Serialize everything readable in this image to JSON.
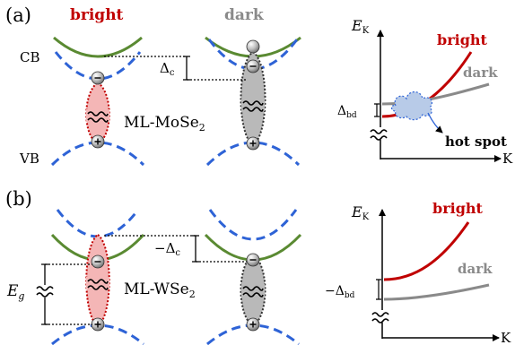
{
  "colors": {
    "cb_green": "#5a8a32",
    "vb_blue": "#2e63d6",
    "bright_red": "#c00000",
    "dark_gray": "#8a8a8a",
    "exciton_bright_fill": "#f4b6b6",
    "exciton_dark_fill": "#b9b9b9",
    "cloud_fill": "#b8cbe8"
  },
  "panel_a": {
    "label": "(a)",
    "bright_title": "bright",
    "dark_title": "dark",
    "cb_label": "CB",
    "vb_label": "VB",
    "split_main": "Δ",
    "split_sub": "c",
    "material_main": "ML-MoSe",
    "material_sub": "2",
    "plot": {
      "y_main": "E",
      "y_sub": "K",
      "x_label": "K",
      "bright_label": "bright",
      "dark_label": "dark",
      "gap_main": "Δ",
      "gap_sub": "bd",
      "hotspot_label": "hot spot"
    }
  },
  "panel_b": {
    "label": "(b)",
    "split_main": "−Δ",
    "split_sub": "c",
    "gap_label_main": "E",
    "gap_label_sub": "g",
    "material_main": "ML-WSe",
    "material_sub": "2",
    "plot": {
      "y_main": "E",
      "y_sub": "K",
      "x_label": "K",
      "bright_label": "bright",
      "dark_label": "dark",
      "gap_main": "−Δ",
      "gap_sub": "bd"
    }
  }
}
